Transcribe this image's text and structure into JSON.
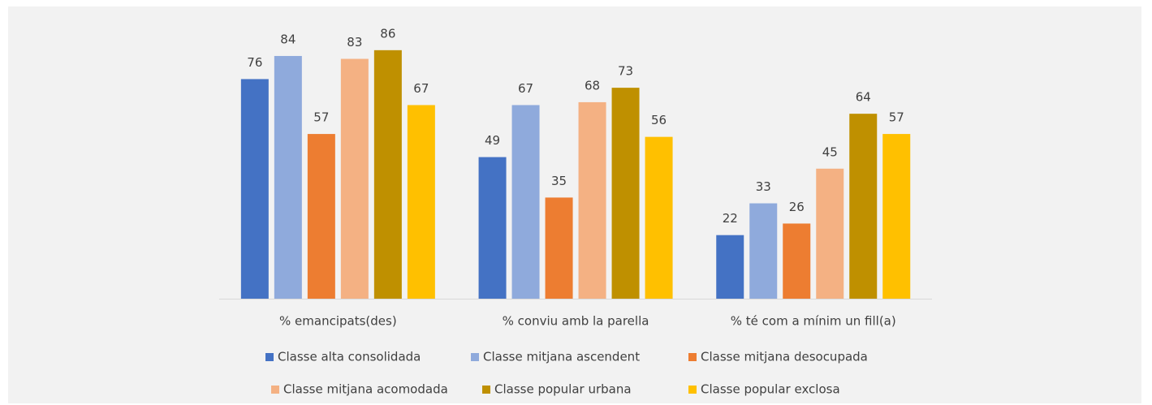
{
  "chart_data": {
    "type": "bar",
    "categories": [
      "% emancipats(des)",
      "% conviu amb la parella",
      "% té com a mínim un fill(a)"
    ],
    "series": [
      {
        "name": "Classe alta consolidada",
        "color": "#4472c4",
        "values": [
          76,
          49,
          22
        ]
      },
      {
        "name": "Classe mitjana ascendent",
        "color": "#8faadc",
        "values": [
          84,
          67,
          33
        ]
      },
      {
        "name": "Classe mitjana desocupada",
        "color": "#ed7d31",
        "values": [
          57,
          35,
          26
        ]
      },
      {
        "name": "Classe mitjana acomodada",
        "color": "#f4b183",
        "values": [
          83,
          68,
          45
        ]
      },
      {
        "name": "Classe popular urbana",
        "color": "#bf9000",
        "values": [
          86,
          73,
          64
        ]
      },
      {
        "name": "Classe popular exclosa",
        "color": "#ffc000",
        "values": [
          67,
          56,
          57
        ]
      }
    ],
    "legend": "bottom"
  }
}
